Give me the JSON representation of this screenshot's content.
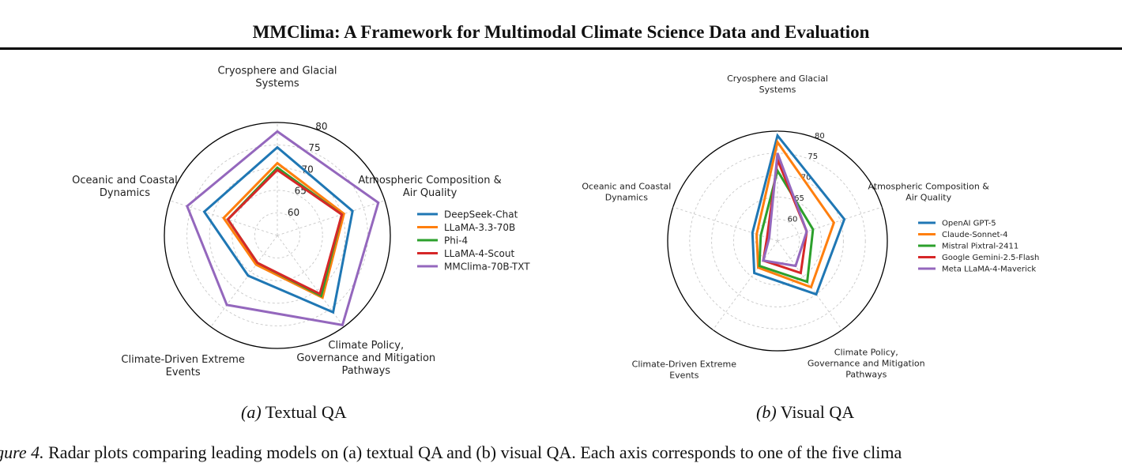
{
  "header": {
    "title": "MMClima: A Framework for Multimodal Climate Science Data and Evaluation"
  },
  "caption": {
    "label": "igure 4.",
    "text": " Radar plots comparing leading models on (a) textual QA and (b) visual QA. Each axis corresponds to one of the five clima"
  },
  "chart_data": [
    {
      "type": "radar",
      "subcaption_tag": "(a)",
      "subcaption_text": " Textual QA",
      "axes": [
        [
          "Cryosphere and Glacial",
          "Systems"
        ],
        [
          "Atmospheric Composition &",
          "Air Quality"
        ],
        [
          "Climate Policy,",
          "Governance and Mitigation",
          "Pathways"
        ],
        [
          "Climate-Driven Extreme",
          "Events"
        ],
        [
          "Oceanic and Coastal",
          "Dynamics"
        ]
      ],
      "r_ticks": [
        60,
        65,
        70,
        75,
        80
      ],
      "r_range": [
        55,
        80
      ],
      "grid": true,
      "legend_position": "right",
      "series": [
        {
          "name": "DeepSeek-Chat",
          "color": "#1f77b4",
          "values": [
            74.5,
            72.5,
            76.0,
            66.0,
            72.0
          ]
        },
        {
          "name": "LLaMA-3.3-70B",
          "color": "#ff7f0e",
          "values": [
            71.0,
            70.5,
            72.0,
            63.0,
            67.5
          ]
        },
        {
          "name": "Phi-4",
          "color": "#2ca02c",
          "values": [
            70.0,
            70.0,
            71.5,
            62.5,
            66.5
          ]
        },
        {
          "name": "LLaMA-4-Scout",
          "color": "#d62728",
          "values": [
            69.5,
            70.0,
            71.0,
            62.5,
            66.5
          ]
        },
        {
          "name": "MMClima-70B-TXT",
          "color": "#9467bd",
          "values": [
            78.0,
            78.5,
            79.5,
            74.0,
            76.0
          ]
        }
      ]
    },
    {
      "type": "radar",
      "subcaption_tag": "(b)",
      "subcaption_text": " Visual QA",
      "axes": [
        [
          "Cryosphere and Glacial",
          "Systems"
        ],
        [
          "Atmospheric Composition &",
          "Air Quality"
        ],
        [
          "Climate Policy,",
          "Governance and Mitigation",
          "Pathways"
        ],
        [
          "Climate-Driven Extreme",
          "Events"
        ],
        [
          "Oceanic and Coastal",
          "Dynamics"
        ]
      ],
      "r_ticks": [
        60,
        65,
        70,
        75,
        80
      ],
      "r_range": [
        55,
        80
      ],
      "grid": true,
      "legend_position": "right",
      "series": [
        {
          "name": "OpenAI GPT-5",
          "color": "#1f77b4",
          "values": [
            79.0,
            71.0,
            70.0,
            64.0,
            61.0
          ]
        },
        {
          "name": "Claude-Sonnet-4",
          "color": "#ff7f0e",
          "values": [
            77.5,
            68.5,
            68.0,
            62.5,
            60.0
          ]
        },
        {
          "name": "Mistral Pixtral-2411",
          "color": "#2ca02c",
          "values": [
            71.0,
            63.5,
            66.5,
            62.0,
            59.0
          ]
        },
        {
          "name": "Google Gemini-2.5-Flash",
          "color": "#d62728",
          "values": [
            73.5,
            62.0,
            64.0,
            60.5,
            57.5
          ]
        },
        {
          "name": "Meta LLaMA-4-Maverick",
          "color": "#9467bd",
          "values": [
            75.0,
            62.0,
            62.0,
            60.5,
            57.0
          ]
        }
      ]
    }
  ]
}
